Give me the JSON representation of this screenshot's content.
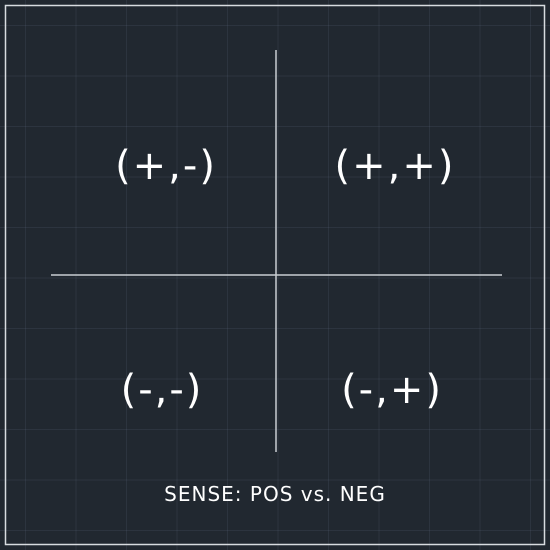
{
  "quadrants": {
    "top_left": "(+,-)",
    "top_right": "(+,+)",
    "bottom_left": "(-,-)",
    "bottom_right": "(-,+)"
  },
  "caption": "SENSE: POS vs. NEG",
  "colors": {
    "background": "#212830",
    "grid": "#3a4452",
    "border": "#d8dce0",
    "axis": "#c9cdd2",
    "text": "#ffffff"
  }
}
